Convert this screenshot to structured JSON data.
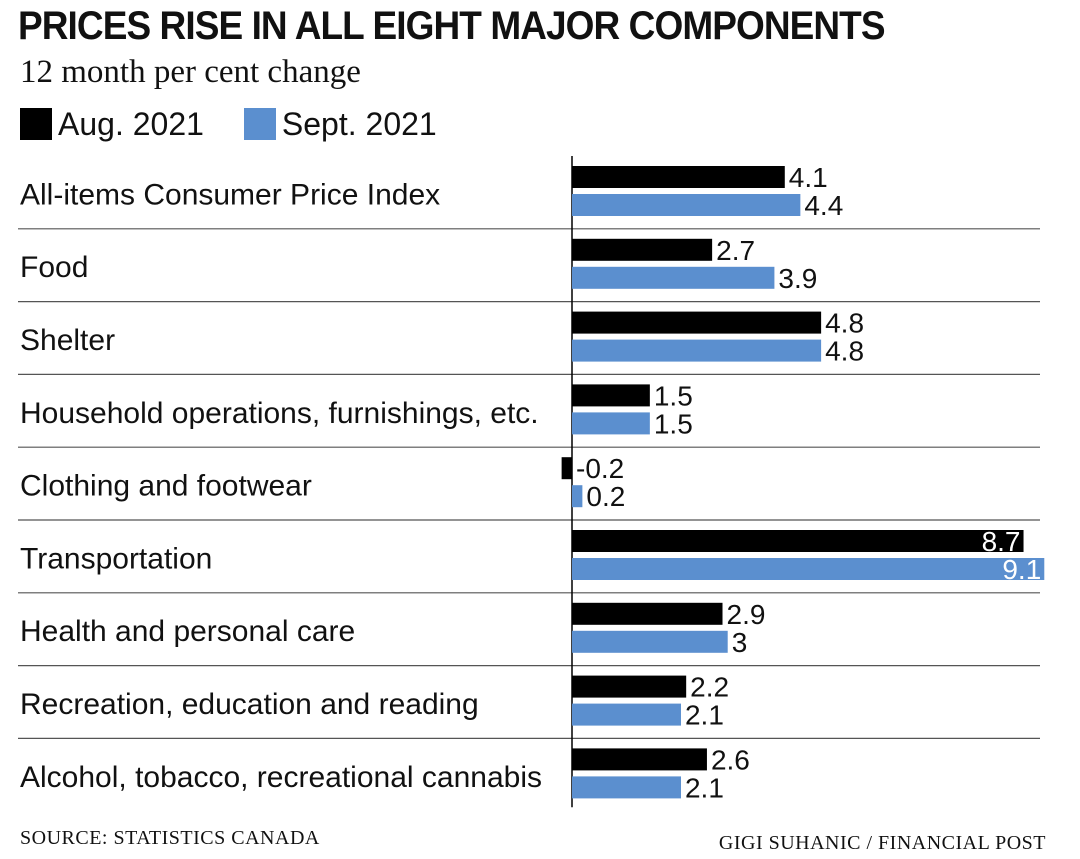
{
  "chart_data": {
    "type": "bar",
    "orientation": "horizontal",
    "title": "PRICES RISE IN ALL EIGHT MAJOR COMPONENTS",
    "subtitle": "12 month per cent change",
    "categories": [
      "All-items Consumer Price Index",
      "Food",
      "Shelter",
      "Household operations, furnishings, etc.",
      "Clothing and footwear",
      "Transportation",
      "Health and personal care",
      "Recreation, education and reading",
      "Alcohol, tobacco, recreational cannabis"
    ],
    "series": [
      {
        "name": "Aug. 2021",
        "color": "#000000",
        "values": [
          4.1,
          2.7,
          4.8,
          1.5,
          -0.2,
          8.7,
          2.9,
          2.2,
          2.6
        ]
      },
      {
        "name": "Sept. 2021",
        "color": "#5b8fcf",
        "values": [
          4.4,
          3.9,
          4.8,
          1.5,
          0.2,
          9.1,
          3,
          2.1,
          2.1
        ]
      }
    ],
    "data_labels": [
      [
        "4.1",
        "2.7",
        "4.8",
        "1.5",
        "-0.2",
        "8.7",
        "2.9",
        "2.2",
        "2.6"
      ],
      [
        "4.4",
        "3.9",
        "4.8",
        "1.5",
        "0.2",
        "9.1",
        "3",
        "2.1",
        "2.1"
      ]
    ],
    "xlim": [
      0,
      9.1
    ],
    "grid": false,
    "legend_position": "top-left"
  },
  "footer": {
    "source": "SOURCE: STATISTICS CANADA",
    "credit": "GIGI SUHANIC   / FINANCIAL POST"
  }
}
